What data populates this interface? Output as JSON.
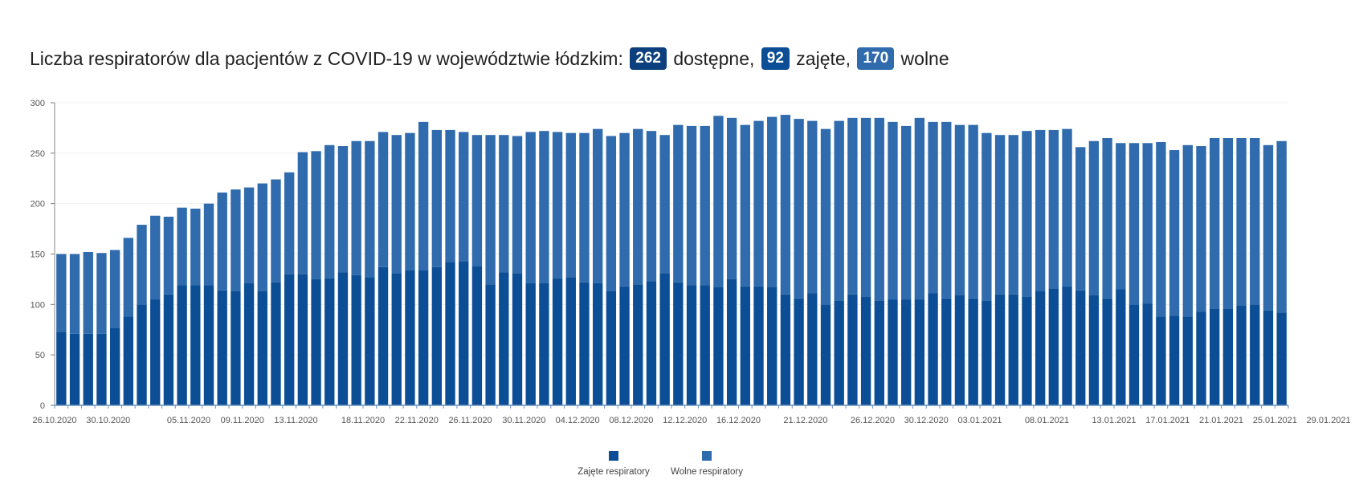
{
  "heading": {
    "prefix": "Liczba respiratorów dla pacjentów z COVID-19 w województwie łódzkim:",
    "available_value": "262",
    "available_label": "dostępne,",
    "occupied_value": "92",
    "occupied_label": "zajęte,",
    "free_value": "170",
    "free_label": "wolne"
  },
  "colors": {
    "occupied": "#0b4e96",
    "free": "#2f6bad",
    "badge_available": "#0b3f7d",
    "badge_occupied": "#0b4e96",
    "badge_free": "#2f6bad"
  },
  "chart_data": {
    "type": "bar",
    "stacked": true,
    "ylim": [
      0,
      300
    ],
    "yticks": [
      0,
      50,
      100,
      150,
      200,
      250,
      300
    ],
    "grid": true,
    "legend_position": "bottom",
    "first_date": "26.10.2020",
    "x_tick_labels": [
      "26.10.2020",
      "30.10.2020",
      "05.11.2020",
      "09.11.2020",
      "13.11.2020",
      "18.11.2020",
      "22.11.2020",
      "26.11.2020",
      "30.11.2020",
      "04.12.2020",
      "08.12.2020",
      "12.12.2020",
      "16.12.2020",
      "21.12.2020",
      "26.12.2020",
      "30.12.2020",
      "03.01.2021",
      "08.01.2021",
      "13.01.2021",
      "17.01.2021",
      "21.01.2021",
      "25.01.2021",
      "29.01.2021"
    ],
    "series": [
      {
        "name": "Zajęte respiratory",
        "values": [
          73,
          71,
          71,
          71,
          77,
          88,
          100,
          105,
          110,
          119,
          119,
          119,
          114,
          113,
          121,
          113,
          122,
          130,
          130,
          125,
          126,
          132,
          129,
          127,
          137,
          131,
          134,
          134,
          137,
          142,
          143,
          138,
          120,
          132,
          131,
          121,
          121,
          126,
          127,
          122,
          121,
          113,
          118,
          120,
          123,
          131,
          122,
          119,
          119,
          117,
          125,
          118,
          118,
          117,
          110,
          106,
          111,
          100,
          104,
          110,
          108,
          104,
          105,
          105,
          105,
          111,
          106,
          109,
          106,
          104,
          110,
          110,
          108,
          113,
          116,
          118,
          114,
          109,
          106,
          115,
          100,
          101,
          88,
          89,
          88,
          93,
          96,
          96,
          99,
          100,
          94,
          92
        ]
      },
      {
        "name": "Wolne respiratory",
        "values": [
          77,
          79,
          81,
          80,
          77,
          78,
          79,
          83,
          77,
          77,
          76,
          81,
          97,
          101,
          95,
          107,
          102,
          101,
          121,
          127,
          132,
          125,
          133,
          135,
          134,
          137,
          136,
          147,
          136,
          131,
          128,
          130,
          148,
          136,
          136,
          150,
          151,
          145,
          143,
          148,
          153,
          154,
          152,
          154,
          149,
          137,
          156,
          158,
          158,
          170,
          160,
          160,
          164,
          169,
          178,
          178,
          171,
          174,
          178,
          175,
          177,
          181,
          176,
          172,
          180,
          170,
          175,
          169,
          172,
          166,
          158,
          158,
          164,
          160,
          157,
          156,
          142,
          153,
          159,
          145,
          160,
          159,
          173,
          164,
          170,
          164,
          169,
          169,
          166,
          165,
          164,
          170
        ]
      }
    ]
  },
  "legend": {
    "occupied_label": "Zajęte respiratory",
    "free_label": "Wolne respiratory"
  }
}
